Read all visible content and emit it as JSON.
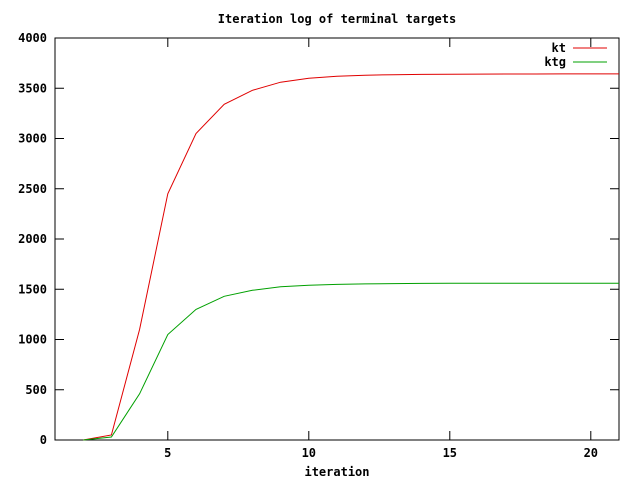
{
  "chart_data": {
    "type": "line",
    "title": "Iteration log of terminal targets",
    "xlabel": "iteration",
    "ylabel": "",
    "xlim": [
      1,
      21
    ],
    "ylim": [
      0,
      4000
    ],
    "x_ticks": [
      5,
      10,
      15,
      20
    ],
    "y_ticks": [
      0,
      500,
      1000,
      1500,
      2000,
      2500,
      3000,
      3500,
      4000
    ],
    "grid": false,
    "legend_position": "top-right",
    "series": [
      {
        "name": "kt",
        "color": "#e00000",
        "x": [
          2,
          3,
          4,
          5,
          6,
          7,
          8,
          9,
          10,
          11,
          12,
          13,
          14,
          15,
          16,
          17,
          18,
          19,
          20,
          21
        ],
        "y": [
          0,
          50,
          1100,
          2450,
          3050,
          3340,
          3480,
          3560,
          3600,
          3620,
          3630,
          3635,
          3638,
          3640,
          3641,
          3642,
          3642,
          3643,
          3643,
          3643
        ]
      },
      {
        "name": "ktg",
        "color": "#00a000",
        "x": [
          2,
          3,
          4,
          5,
          6,
          7,
          8,
          9,
          10,
          11,
          12,
          13,
          14,
          15,
          16,
          17,
          18,
          19,
          20,
          21
        ],
        "y": [
          0,
          30,
          460,
          1050,
          1300,
          1430,
          1490,
          1525,
          1540,
          1548,
          1553,
          1556,
          1558,
          1559,
          1560,
          1560,
          1560,
          1560,
          1560,
          1560
        ]
      }
    ]
  }
}
